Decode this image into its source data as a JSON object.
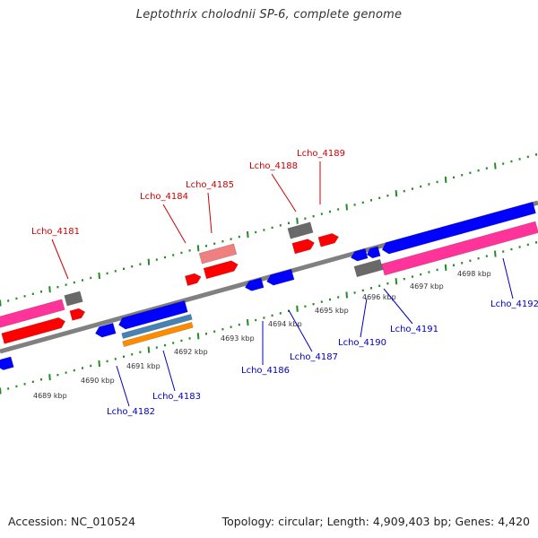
{
  "title": "Leptothrix cholodnii SP-6, complete genome",
  "footer": {
    "accession": "Accession: NC_010524",
    "summary": "Topology: circular; Length: 4,909,403 bp; Genes: 4,420"
  },
  "colors": {
    "backbone": "#808080",
    "forward_scale": "#228B22",
    "forward_label": "#cc0000",
    "reverse_label": "#0000bb",
    "red_gene": "#ff0000",
    "pink_gene": "#ff3399",
    "salmon_gene": "#f08080",
    "blue_gene": "#0000ff",
    "gray_gene": "#696969",
    "steel_gene": "#4682b4",
    "orange_gene": "#ff8c00"
  },
  "kbp_ticks": [
    "4689 kbp",
    "4690 kbp",
    "4691 kbp",
    "4692 kbp",
    "4693 kbp",
    "4694 kbp",
    "4695 kbp",
    "4696 kbp",
    "4697 kbp",
    "4698 kbp"
  ],
  "forward_labels": [
    "Lcho_4181",
    "Lcho_4184",
    "Lcho_4185",
    "Lcho_4188",
    "Lcho_4189"
  ],
  "reverse_labels": [
    "Lcho_4182",
    "Lcho_4183",
    "Lcho_4186",
    "Lcho_4187",
    "Lcho_4190",
    "Lcho_4191",
    "Lcho_4192"
  ]
}
